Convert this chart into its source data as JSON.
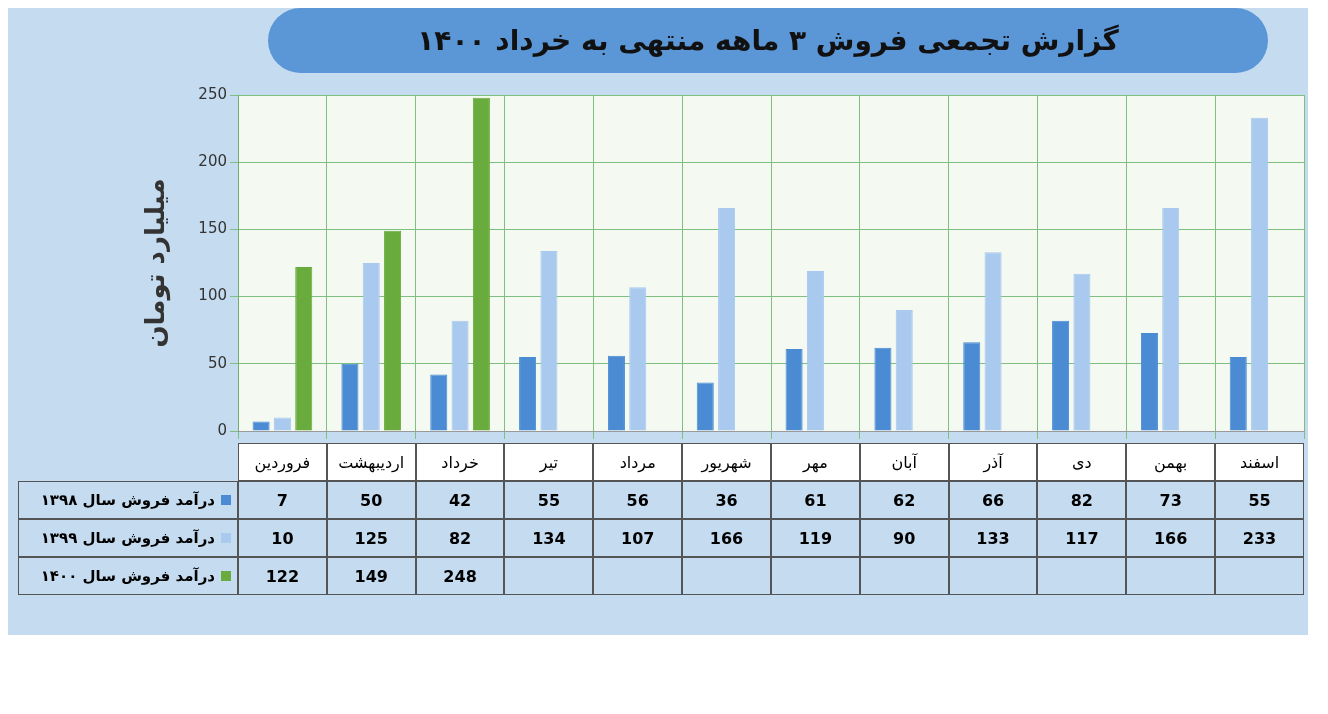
{
  "chart_data": {
    "type": "bar",
    "title": "گزارش تجمعی فروش ۳ ماهه منتهی به خرداد ۱۴۰۰",
    "ylabel": "میلیارد تومان",
    "categories": [
      "فروردین",
      "اردیبهشت",
      "خرداد",
      "تیر",
      "مرداد",
      "شهریور",
      "مهر",
      "آبان",
      "آذر",
      "دی",
      "بهمن",
      "اسفند"
    ],
    "series": [
      {
        "name": "درآمد فروش سال ۱۳۹۸",
        "color": "#4a8bd4",
        "values": [
          7,
          50,
          42,
          55,
          56,
          36,
          61,
          62,
          66,
          82,
          73,
          55
        ]
      },
      {
        "name": "درآمد فروش سال ۱۳۹۹",
        "color": "#a9c9ee",
        "values": [
          10,
          125,
          82,
          134,
          107,
          166,
          119,
          90,
          133,
          117,
          166,
          233
        ]
      },
      {
        "name": "درآمد فروش سال ۱۴۰۰",
        "color": "#6aab3e",
        "values": [
          122,
          149,
          248,
          null,
          null,
          null,
          null,
          null,
          null,
          null,
          null,
          null
        ]
      }
    ],
    "ylim": [
      0,
      250
    ],
    "yticks": [
      0,
      50,
      100,
      150,
      200,
      250
    ],
    "grid": true,
    "legend": "bottom",
    "data_labels": true
  }
}
